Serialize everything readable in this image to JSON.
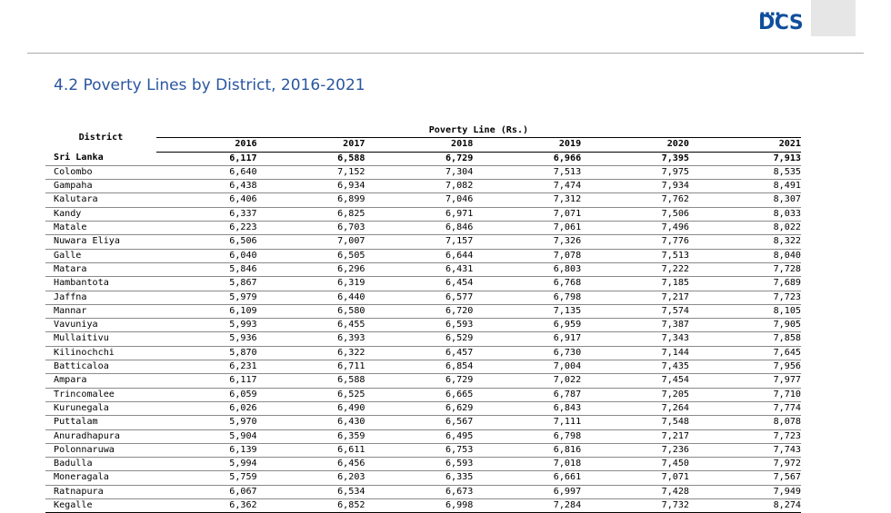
{
  "header": {
    "logo_text": "DCS",
    "logo_dots": "▪▪▪▪"
  },
  "title": "4.2 Poverty Lines  by District, 2016-2021",
  "table": {
    "district_header": "District",
    "group_header": "Poverty Line (Rs.)",
    "years": [
      "2016",
      "2017",
      "2018",
      "2019",
      "2020",
      "2021"
    ],
    "rows": [
      {
        "district": "Sri Lanka",
        "values": [
          "6,117",
          "6,588",
          "6,729",
          "6,966",
          "7,395",
          "7,913"
        ]
      },
      {
        "district": "Colombo",
        "values": [
          "6,640",
          "7,152",
          "7,304",
          "7,513",
          "7,975",
          "8,535"
        ]
      },
      {
        "district": "Gampaha",
        "values": [
          "6,438",
          "6,934",
          "7,082",
          "7,474",
          "7,934",
          "8,491"
        ]
      },
      {
        "district": "Kalutara",
        "values": [
          "6,406",
          "6,899",
          "7,046",
          "7,312",
          "7,762",
          "8,307"
        ]
      },
      {
        "district": "Kandy",
        "values": [
          "6,337",
          "6,825",
          "6,971",
          "7,071",
          "7,506",
          "8,033"
        ]
      },
      {
        "district": "Matale",
        "values": [
          "6,223",
          "6,703",
          "6,846",
          "7,061",
          "7,496",
          "8,022"
        ]
      },
      {
        "district": "Nuwara Eliya",
        "values": [
          "6,506",
          "7,007",
          "7,157",
          "7,326",
          "7,776",
          "8,322"
        ]
      },
      {
        "district": "Galle",
        "values": [
          "6,040",
          "6,505",
          "6,644",
          "7,078",
          "7,513",
          "8,040"
        ]
      },
      {
        "district": "Matara",
        "values": [
          "5,846",
          "6,296",
          "6,431",
          "6,803",
          "7,222",
          "7,728"
        ]
      },
      {
        "district": "Hambantota",
        "values": [
          "5,867",
          "6,319",
          "6,454",
          "6,768",
          "7,185",
          "7,689"
        ]
      },
      {
        "district": "Jaffna",
        "values": [
          "5,979",
          "6,440",
          "6,577",
          "6,798",
          "7,217",
          "7,723"
        ]
      },
      {
        "district": "Mannar",
        "values": [
          "6,109",
          "6,580",
          "6,720",
          "7,135",
          "7,574",
          "8,105"
        ]
      },
      {
        "district": "Vavuniya",
        "values": [
          "5,993",
          "6,455",
          "6,593",
          "6,959",
          "7,387",
          "7,905"
        ]
      },
      {
        "district": "Mullaitivu",
        "values": [
          "5,936",
          "6,393",
          "6,529",
          "6,917",
          "7,343",
          "7,858"
        ]
      },
      {
        "district": "Kilinochchi",
        "values": [
          "5,870",
          "6,322",
          "6,457",
          "6,730",
          "7,144",
          "7,645"
        ]
      },
      {
        "district": "Batticaloa",
        "values": [
          "6,231",
          "6,711",
          "6,854",
          "7,004",
          "7,435",
          "7,956"
        ]
      },
      {
        "district": "Ampara",
        "values": [
          "6,117",
          "6,588",
          "6,729",
          "7,022",
          "7,454",
          "7,977"
        ]
      },
      {
        "district": "Trincomalee",
        "values": [
          "6,059",
          "6,525",
          "6,665",
          "6,787",
          "7,205",
          "7,710"
        ]
      },
      {
        "district": "Kurunegala",
        "values": [
          "6,026",
          "6,490",
          "6,629",
          "6,843",
          "7,264",
          "7,774"
        ]
      },
      {
        "district": "Puttalam",
        "values": [
          "5,970",
          "6,430",
          "6,567",
          "7,111",
          "7,548",
          "8,078"
        ]
      },
      {
        "district": "Anuradhapura",
        "values": [
          "5,904",
          "6,359",
          "6,495",
          "6,798",
          "7,217",
          "7,723"
        ]
      },
      {
        "district": "Polonnaruwa",
        "values": [
          "6,139",
          "6,611",
          "6,753",
          "6,816",
          "7,236",
          "7,743"
        ]
      },
      {
        "district": "Badulla",
        "values": [
          "5,994",
          "6,456",
          "6,593",
          "7,018",
          "7,450",
          "7,972"
        ]
      },
      {
        "district": "Moneragala",
        "values": [
          "5,759",
          "6,203",
          "6,335",
          "6,661",
          "7,071",
          "7,567"
        ]
      },
      {
        "district": "Ratnapura",
        "values": [
          "6,067",
          "6,534",
          "6,673",
          "6,997",
          "7,428",
          "7,949"
        ]
      },
      {
        "district": "Kegalle",
        "values": [
          "6,362",
          "6,852",
          "6,998",
          "7,284",
          "7,732",
          "8,274"
        ]
      }
    ]
  }
}
